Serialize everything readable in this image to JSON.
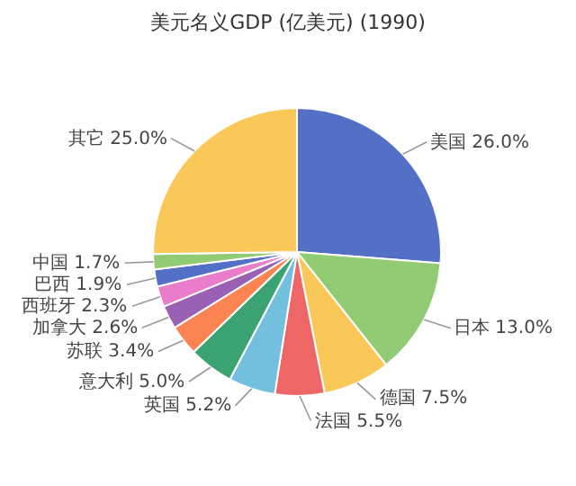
{
  "chart_data": {
    "type": "pie",
    "title": "美元名义GDP (亿美元) (1990)",
    "categories": [
      "美国",
      "日本",
      "德国",
      "法国",
      "英国",
      "意大利",
      "苏联",
      "加拿大",
      "西班牙",
      "巴西",
      "中国",
      "其它"
    ],
    "values": [
      26.0,
      13.0,
      7.5,
      5.5,
      5.2,
      5.0,
      3.4,
      2.6,
      2.3,
      1.9,
      1.7,
      25.0
    ],
    "value_labels": [
      "26.0%",
      "13.0%",
      "7.5%",
      "5.5%",
      "5.2%",
      "5.0%",
      "3.4%",
      "2.6%",
      "2.3%",
      "1.9%",
      "1.7%",
      "25.0%"
    ],
    "colors": [
      "#5470c6",
      "#91cc75",
      "#fac858",
      "#ee6666",
      "#73c0de",
      "#3ba272",
      "#fc8452",
      "#9a60b4",
      "#ea7ccc",
      "#5470c6",
      "#91cc75",
      "#fac858"
    ],
    "legend": false
  }
}
